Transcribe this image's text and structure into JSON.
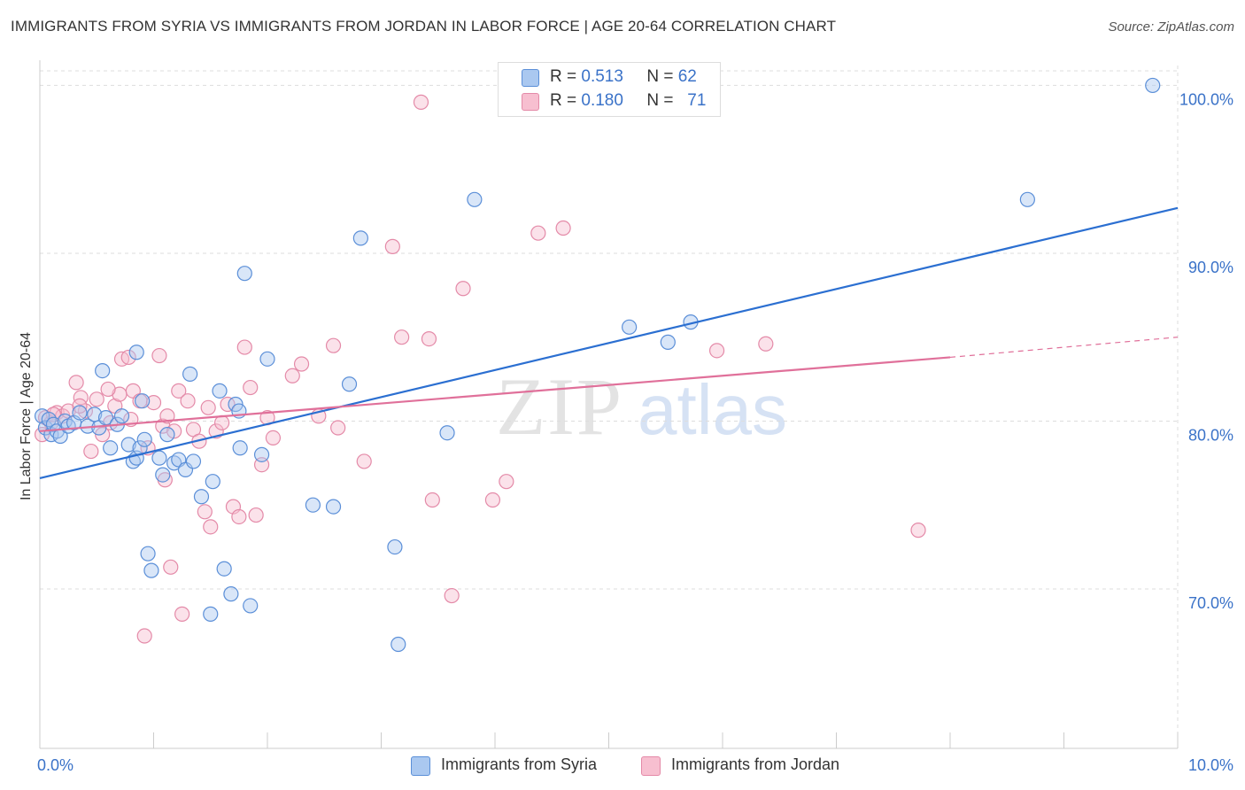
{
  "title": "IMMIGRANTS FROM SYRIA VS IMMIGRANTS FROM JORDAN IN LABOR FORCE | AGE 20-64 CORRELATION CHART",
  "source": "Source: ZipAtlas.com",
  "watermark": {
    "zip": "ZIP",
    "atlas": "atlas"
  },
  "legend": {
    "r_label": "R =",
    "n_label": "N =",
    "syria": {
      "r": "0.513",
      "n": "62"
    },
    "jordan": {
      "r": "0.180",
      "n": "71"
    }
  },
  "colors": {
    "syria_fill": "#aac8f0",
    "syria_stroke": "#5b8fd8",
    "syria_line": "#2b6fd1",
    "jordan_fill": "#f7bfd0",
    "jordan_stroke": "#e48aa8",
    "jordan_line": "#e0709a",
    "tick_label": "#3a72c8",
    "grid": "#dddddd"
  },
  "chart_data": {
    "type": "scatter",
    "title": "IMMIGRANTS FROM SYRIA VS IMMIGRANTS FROM JORDAN IN LABOR FORCE | AGE 20-64 CORRELATION CHART",
    "xlabel": "",
    "ylabel": "In Labor Force | Age 20-64",
    "xlim": [
      0,
      10
    ],
    "ylim": [
      60.5,
      101.5
    ],
    "x_tick_labels": [
      "0.0%",
      "10.0%"
    ],
    "y_ticks": [
      70,
      80,
      90,
      100
    ],
    "y_tick_labels": [
      "70.0%",
      "80.0%",
      "90.0%",
      "100.0%"
    ],
    "grid": true,
    "legend_placement": "bottom",
    "series": [
      {
        "name": "Immigrants from Syria",
        "trend": {
          "x": [
            0,
            10
          ],
          "y": [
            76.6,
            92.7
          ]
        },
        "points": [
          [
            0.02,
            80.3
          ],
          [
            0.05,
            79.6
          ],
          [
            0.08,
            80.1
          ],
          [
            0.1,
            79.2
          ],
          [
            0.12,
            79.8
          ],
          [
            0.15,
            79.4
          ],
          [
            0.18,
            79.1
          ],
          [
            0.22,
            80.0
          ],
          [
            0.25,
            79.7
          ],
          [
            0.3,
            79.9
          ],
          [
            0.35,
            80.5
          ],
          [
            0.42,
            79.7
          ],
          [
            0.48,
            80.4
          ],
          [
            0.52,
            79.6
          ],
          [
            0.58,
            80.2
          ],
          [
            0.62,
            78.4
          ],
          [
            0.68,
            79.8
          ],
          [
            0.72,
            80.3
          ],
          [
            0.78,
            78.6
          ],
          [
            0.82,
            77.6
          ],
          [
            0.85,
            77.8
          ],
          [
            0.88,
            78.4
          ],
          [
            0.92,
            78.9
          ],
          [
            0.95,
            72.1
          ],
          [
            0.98,
            71.1
          ],
          [
            1.05,
            77.8
          ],
          [
            1.08,
            76.8
          ],
          [
            1.12,
            79.2
          ],
          [
            1.18,
            77.5
          ],
          [
            1.22,
            77.7
          ],
          [
            1.28,
            77.1
          ],
          [
            1.32,
            82.8
          ],
          [
            1.35,
            77.6
          ],
          [
            1.42,
            75.5
          ],
          [
            1.5,
            68.5
          ],
          [
            1.52,
            76.4
          ],
          [
            1.58,
            81.8
          ],
          [
            1.62,
            71.2
          ],
          [
            1.68,
            69.7
          ],
          [
            1.72,
            81.0
          ],
          [
            1.76,
            78.4
          ],
          [
            1.8,
            88.8
          ],
          [
            1.85,
            69.0
          ],
          [
            1.95,
            78.0
          ],
          [
            2.0,
            83.7
          ],
          [
            2.4,
            75.0
          ],
          [
            2.58,
            74.9
          ],
          [
            2.72,
            82.2
          ],
          [
            2.82,
            90.9
          ],
          [
            3.12,
            72.5
          ],
          [
            3.15,
            66.7
          ],
          [
            3.58,
            79.3
          ],
          [
            3.82,
            93.2
          ],
          [
            5.18,
            85.6
          ],
          [
            5.52,
            84.7
          ],
          [
            5.72,
            85.9
          ],
          [
            8.68,
            93.2
          ],
          [
            9.78,
            100.0
          ],
          [
            0.55,
            83.0
          ],
          [
            0.85,
            84.1
          ],
          [
            0.9,
            81.2
          ],
          [
            1.75,
            80.6
          ]
        ]
      },
      {
        "name": "Immigrants from Jordan",
        "trend": {
          "x": [
            0,
            8.0
          ],
          "y": [
            79.4,
            83.8
          ]
        },
        "trend_ext": {
          "x": [
            8.0,
            10
          ],
          "y": [
            83.8,
            85.0
          ]
        },
        "points": [
          [
            0.02,
            79.2
          ],
          [
            0.05,
            80.2
          ],
          [
            0.1,
            79.9
          ],
          [
            0.15,
            80.5
          ],
          [
            0.2,
            80.3
          ],
          [
            0.25,
            80.6
          ],
          [
            0.32,
            82.3
          ],
          [
            0.36,
            81.4
          ],
          [
            0.4,
            80.6
          ],
          [
            0.45,
            78.2
          ],
          [
            0.5,
            81.3
          ],
          [
            0.55,
            79.2
          ],
          [
            0.62,
            79.9
          ],
          [
            0.66,
            80.9
          ],
          [
            0.7,
            81.6
          ],
          [
            0.72,
            83.7
          ],
          [
            0.78,
            83.8
          ],
          [
            0.82,
            81.8
          ],
          [
            0.88,
            81.2
          ],
          [
            0.92,
            67.2
          ],
          [
            0.95,
            78.4
          ],
          [
            1.0,
            81.1
          ],
          [
            1.05,
            83.9
          ],
          [
            1.08,
            79.7
          ],
          [
            1.1,
            76.5
          ],
          [
            1.15,
            71.3
          ],
          [
            1.18,
            79.4
          ],
          [
            1.22,
            81.8
          ],
          [
            1.25,
            68.5
          ],
          [
            1.3,
            81.2
          ],
          [
            1.35,
            79.5
          ],
          [
            1.4,
            78.8
          ],
          [
            1.45,
            74.6
          ],
          [
            1.5,
            73.7
          ],
          [
            1.55,
            79.4
          ],
          [
            1.6,
            79.9
          ],
          [
            1.65,
            81.0
          ],
          [
            1.7,
            74.9
          ],
          [
            1.75,
            74.3
          ],
          [
            1.8,
            84.4
          ],
          [
            1.85,
            82.0
          ],
          [
            1.9,
            74.4
          ],
          [
            1.95,
            77.4
          ],
          [
            2.05,
            79.0
          ],
          [
            2.22,
            82.7
          ],
          [
            2.3,
            83.4
          ],
          [
            2.45,
            80.3
          ],
          [
            2.58,
            84.5
          ],
          [
            2.62,
            79.6
          ],
          [
            2.85,
            77.6
          ],
          [
            3.1,
            90.4
          ],
          [
            3.18,
            85.0
          ],
          [
            3.35,
            99.0
          ],
          [
            3.42,
            84.9
          ],
          [
            3.45,
            75.3
          ],
          [
            3.62,
            69.6
          ],
          [
            3.72,
            87.9
          ],
          [
            3.98,
            75.3
          ],
          [
            4.1,
            76.4
          ],
          [
            4.38,
            91.2
          ],
          [
            4.6,
            91.5
          ],
          [
            5.95,
            84.2
          ],
          [
            6.38,
            84.6
          ],
          [
            7.72,
            73.5
          ],
          [
            0.35,
            80.9
          ],
          [
            0.6,
            81.9
          ],
          [
            0.8,
            80.1
          ],
          [
            1.12,
            80.3
          ],
          [
            1.48,
            80.8
          ],
          [
            2.0,
            80.2
          ],
          [
            0.12,
            80.4
          ]
        ]
      }
    ]
  }
}
